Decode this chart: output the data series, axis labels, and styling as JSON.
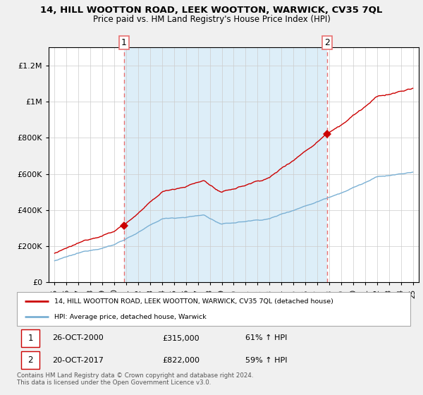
{
  "title": "14, HILL WOOTTON ROAD, LEEK WOOTTON, WARWICK, CV35 7QL",
  "subtitle": "Price paid vs. HM Land Registry's House Price Index (HPI)",
  "legend_line1": "14, HILL WOOTTON ROAD, LEEK WOOTTON, WARWICK, CV35 7QL (detached house)",
  "legend_line2": "HPI: Average price, detached house, Warwick",
  "sale1_date": "26-OCT-2000",
  "sale1_price": "£315,000",
  "sale1_hpi": "61% ↑ HPI",
  "sale2_date": "20-OCT-2017",
  "sale2_price": "£822,000",
  "sale2_hpi": "59% ↑ HPI",
  "footer": "Contains HM Land Registry data © Crown copyright and database right 2024.\nThis data is licensed under the Open Government Licence v3.0.",
  "sale1_year": 2000.82,
  "sale2_year": 2017.8,
  "sale1_value": 315000,
  "sale2_value": 822000,
  "red_color": "#cc0000",
  "blue_color": "#7ab0d4",
  "blue_fill": "#ddeef8",
  "vline_color": "#e87070",
  "background_color": "#f0f0f0",
  "chart_bg": "#ffffff",
  "ylim_min": 0,
  "ylim_max": 1300000,
  "xlim_min": 1994.5,
  "xlim_max": 2025.5
}
